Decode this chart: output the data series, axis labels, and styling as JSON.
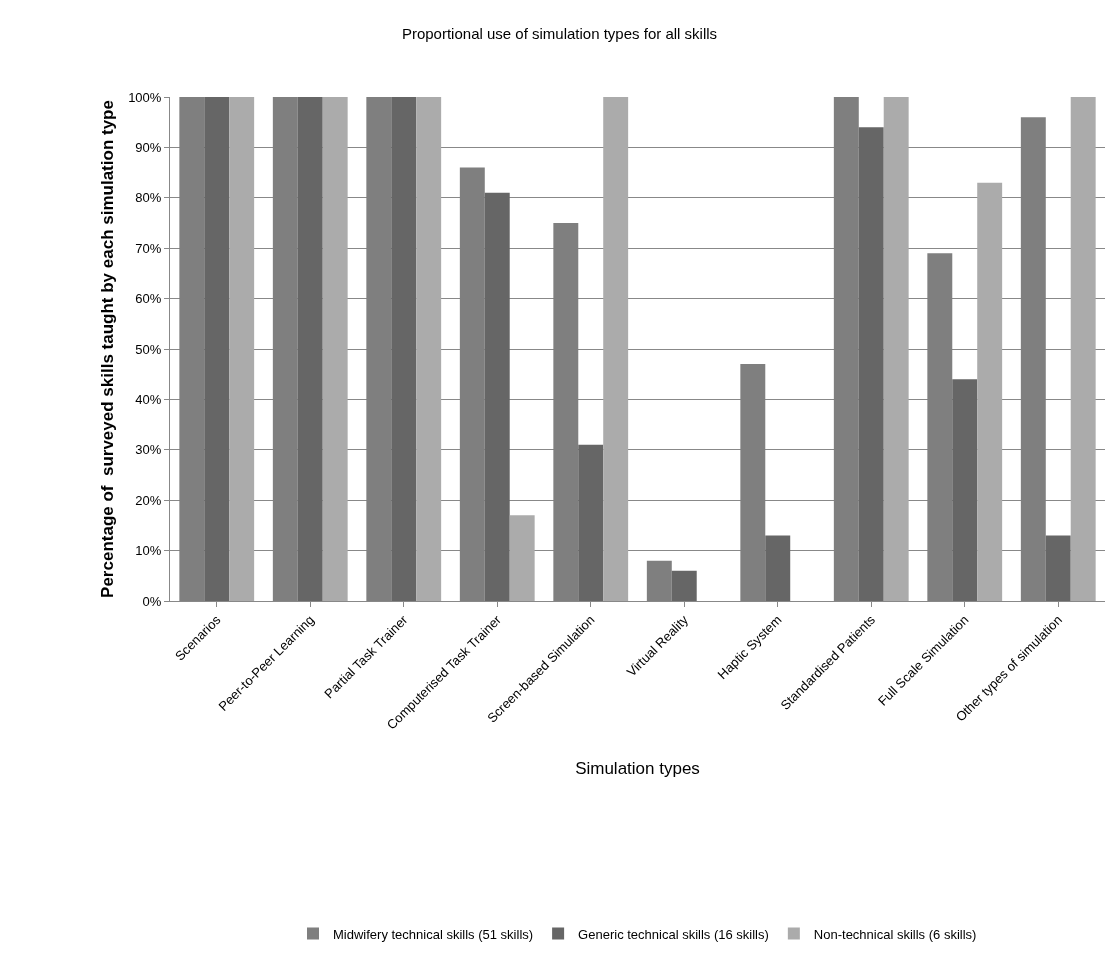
{
  "chart_data": {
    "type": "bar",
    "title": "Proportional use of simulation types for all skills",
    "xlabel": "Simulation types",
    "ylabel": "Percentage of  surveyed skills taught by each simulation type",
    "categories": [
      "Scenarios",
      "Peer-to-Peer Learning",
      "Partial Task Trainer",
      "Computerised Task Trainer",
      "Screen-based Simulation",
      "Virtual Reality",
      "Haptic System",
      "Standardised Patients",
      "Full Scale Simulation",
      "Other types of simulation"
    ],
    "series": [
      {
        "name": "Midwifery technical skills (51 skills)",
        "color": "#7f7f7f",
        "values": [
          100,
          100,
          100,
          86,
          75,
          8,
          47,
          100,
          69,
          96
        ]
      },
      {
        "name": "Generic technical skills (16 skills)",
        "color": "#666666",
        "values": [
          100,
          100,
          100,
          81,
          31,
          6,
          13,
          94,
          44,
          13
        ]
      },
      {
        "name": "Non-technical skills (6 skills)",
        "color": "#ababab",
        "values": [
          100,
          100,
          100,
          17,
          100,
          0,
          0,
          100,
          83,
          100
        ]
      }
    ],
    "ylim": [
      0,
      100
    ],
    "yticks": [
      {
        "value": 0,
        "label": "0%"
      },
      {
        "value": 10,
        "label": "10%"
      },
      {
        "value": 20,
        "label": "20%"
      },
      {
        "value": 30,
        "label": "30%"
      },
      {
        "value": 40,
        "label": "40%"
      },
      {
        "value": 50,
        "label": "50%"
      },
      {
        "value": 60,
        "label": "60%"
      },
      {
        "value": 70,
        "label": "70%"
      },
      {
        "value": 80,
        "label": "80%"
      },
      {
        "value": 90,
        "label": "90%"
      },
      {
        "value": 100,
        "label": "100%"
      }
    ],
    "grid": "y",
    "legend": "bottom"
  }
}
